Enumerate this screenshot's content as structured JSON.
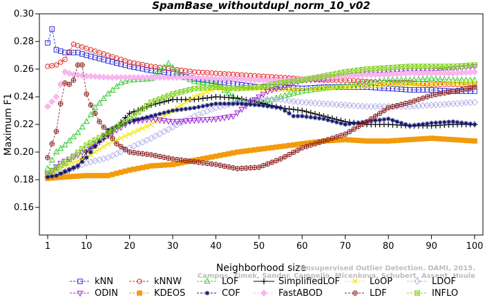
{
  "chart_data": {
    "type": "line",
    "title": "SpamBase_withoutdupl_norm_10_v02",
    "xlabel": "Neighborhood size",
    "ylabel": "Maximum F1",
    "xlim": [
      1,
      100
    ],
    "ylim": [
      0.14,
      0.3
    ],
    "xticks": [
      1,
      10,
      20,
      30,
      40,
      50,
      60,
      70,
      80,
      90,
      100
    ],
    "yticks": [
      0.16,
      0.18,
      0.2,
      0.22,
      0.24,
      0.26,
      0.28,
      0.3
    ],
    "ytick_labels": [
      "0.16",
      "0.18",
      "0.20",
      "0.22",
      "0.24",
      "0.26",
      "0.28",
      "0.30"
    ],
    "grid": false,
    "legend_position": "bottom",
    "watermark": [
      "Unsupervised Outlier Detection. DAMI, 2015.",
      "Campos, Zimek, Sander, Campello, Micenkova, Schubert, Assent, Houle"
    ],
    "series": [
      {
        "name": "kNN",
        "color": "#2b2bd6",
        "marker": "square",
        "dashed": true,
        "points": [
          [
            1,
            0.279
          ],
          [
            2,
            0.289
          ],
          [
            3,
            0.274
          ],
          [
            5,
            0.272
          ],
          [
            8,
            0.272
          ],
          [
            10,
            0.27
          ],
          [
            15,
            0.266
          ],
          [
            20,
            0.262
          ],
          [
            25,
            0.259
          ],
          [
            30,
            0.257
          ],
          [
            35,
            0.253
          ],
          [
            40,
            0.251
          ],
          [
            45,
            0.249
          ],
          [
            50,
            0.247
          ],
          [
            55,
            0.247
          ],
          [
            60,
            0.246
          ],
          [
            65,
            0.247
          ],
          [
            70,
            0.247
          ],
          [
            75,
            0.247
          ],
          [
            80,
            0.246
          ],
          [
            85,
            0.245
          ],
          [
            90,
            0.245
          ],
          [
            95,
            0.244
          ],
          [
            100,
            0.244
          ]
        ]
      },
      {
        "name": "kNNW",
        "color": "#e0231f",
        "marker": "circle",
        "dashed": true,
        "points": [
          [
            1,
            0.262
          ],
          [
            3,
            0.263
          ],
          [
            5,
            0.267
          ],
          [
            7,
            0.278
          ],
          [
            10,
            0.275
          ],
          [
            15,
            0.27
          ],
          [
            20,
            0.265
          ],
          [
            25,
            0.262
          ],
          [
            30,
            0.26
          ],
          [
            35,
            0.258
          ],
          [
            40,
            0.257
          ],
          [
            45,
            0.256
          ],
          [
            50,
            0.255
          ],
          [
            55,
            0.254
          ],
          [
            60,
            0.253
          ],
          [
            65,
            0.252
          ],
          [
            70,
            0.252
          ],
          [
            75,
            0.251
          ],
          [
            80,
            0.25
          ],
          [
            85,
            0.25
          ],
          [
            90,
            0.249
          ],
          [
            95,
            0.249
          ],
          [
            100,
            0.249
          ]
        ]
      },
      {
        "name": "LOF",
        "color": "#2ecc2e",
        "marker": "triangle",
        "dashed": true,
        "points": [
          [
            1,
            0.188
          ],
          [
            3,
            0.2
          ],
          [
            5,
            0.205
          ],
          [
            8,
            0.214
          ],
          [
            10,
            0.222
          ],
          [
            12,
            0.232
          ],
          [
            15,
            0.242
          ],
          [
            18,
            0.25
          ],
          [
            20,
            0.252
          ],
          [
            25,
            0.253
          ],
          [
            29,
            0.264
          ],
          [
            32,
            0.255
          ],
          [
            35,
            0.251
          ],
          [
            40,
            0.249
          ],
          [
            45,
            0.238
          ],
          [
            50,
            0.235
          ],
          [
            55,
            0.24
          ],
          [
            60,
            0.244
          ],
          [
            65,
            0.246
          ],
          [
            70,
            0.248
          ],
          [
            75,
            0.25
          ],
          [
            80,
            0.252
          ],
          [
            85,
            0.252
          ],
          [
            90,
            0.253
          ],
          [
            95,
            0.252
          ],
          [
            100,
            0.252
          ]
        ]
      },
      {
        "name": "SimplifiedLOF",
        "color": "#000000",
        "marker": "plus",
        "dashed": false,
        "points": [
          [
            1,
            0.182
          ],
          [
            3,
            0.182
          ],
          [
            5,
            0.185
          ],
          [
            8,
            0.19
          ],
          [
            10,
            0.2
          ],
          [
            15,
            0.212
          ],
          [
            20,
            0.228
          ],
          [
            25,
            0.234
          ],
          [
            30,
            0.238
          ],
          [
            35,
            0.238
          ],
          [
            40,
            0.24
          ],
          [
            45,
            0.239
          ],
          [
            50,
            0.236
          ],
          [
            55,
            0.232
          ],
          [
            60,
            0.23
          ],
          [
            65,
            0.226
          ],
          [
            70,
            0.222
          ],
          [
            75,
            0.22
          ],
          [
            80,
            0.22
          ],
          [
            85,
            0.219
          ],
          [
            90,
            0.219
          ],
          [
            95,
            0.22
          ],
          [
            100,
            0.22
          ]
        ]
      },
      {
        "name": "LoOP",
        "color": "#f2e500",
        "marker": "x",
        "dashed": true,
        "points": [
          [
            1,
            0.182
          ],
          [
            5,
            0.19
          ],
          [
            10,
            0.196
          ],
          [
            15,
            0.206
          ],
          [
            20,
            0.213
          ],
          [
            25,
            0.22
          ],
          [
            30,
            0.23
          ],
          [
            35,
            0.24
          ],
          [
            40,
            0.246
          ],
          [
            45,
            0.246
          ],
          [
            50,
            0.246
          ],
          [
            55,
            0.245
          ],
          [
            60,
            0.245
          ],
          [
            65,
            0.246
          ],
          [
            70,
            0.247
          ],
          [
            75,
            0.248
          ],
          [
            80,
            0.249
          ],
          [
            85,
            0.249
          ],
          [
            90,
            0.249
          ],
          [
            95,
            0.25
          ],
          [
            100,
            0.25
          ]
        ]
      },
      {
        "name": "LDOF",
        "color": "#b5b0e8",
        "marker": "diamond",
        "dashed": true,
        "points": [
          [
            1,
            0.184
          ],
          [
            5,
            0.186
          ],
          [
            10,
            0.192
          ],
          [
            15,
            0.196
          ],
          [
            20,
            0.203
          ],
          [
            25,
            0.21
          ],
          [
            30,
            0.218
          ],
          [
            35,
            0.226
          ],
          [
            40,
            0.232
          ],
          [
            45,
            0.236
          ],
          [
            50,
            0.238
          ],
          [
            55,
            0.238
          ],
          [
            60,
            0.236
          ],
          [
            65,
            0.235
          ],
          [
            70,
            0.234
          ],
          [
            75,
            0.233
          ],
          [
            80,
            0.233
          ],
          [
            85,
            0.233
          ],
          [
            90,
            0.234
          ],
          [
            95,
            0.235
          ],
          [
            100,
            0.236
          ]
        ]
      },
      {
        "name": "ODIN",
        "color": "#9b1fd1",
        "marker": "invtriangle",
        "dashed": true,
        "points": [
          [
            1,
            0.184
          ],
          [
            4,
            0.192
          ],
          [
            8,
            0.198
          ],
          [
            12,
            0.206
          ],
          [
            15,
            0.212
          ],
          [
            20,
            0.222
          ],
          [
            25,
            0.224
          ],
          [
            30,
            0.222
          ],
          [
            35,
            0.223
          ],
          [
            40,
            0.224
          ],
          [
            44,
            0.226
          ],
          [
            48,
            0.236
          ],
          [
            52,
            0.244
          ],
          [
            56,
            0.248
          ],
          [
            60,
            0.252
          ],
          [
            65,
            0.253
          ],
          [
            70,
            0.255
          ],
          [
            75,
            0.257
          ],
          [
            80,
            0.258
          ],
          [
            85,
            0.259
          ],
          [
            90,
            0.259
          ],
          [
            95,
            0.26
          ],
          [
            100,
            0.262
          ]
        ]
      },
      {
        "name": "KDEOS",
        "color": "#f29b0c",
        "marker": "square-filled",
        "dashed": true,
        "points": [
          [
            1,
            0.181
          ],
          [
            5,
            0.182
          ],
          [
            10,
            0.183
          ],
          [
            15,
            0.183
          ],
          [
            20,
            0.187
          ],
          [
            25,
            0.19
          ],
          [
            30,
            0.191
          ],
          [
            35,
            0.194
          ],
          [
            40,
            0.197
          ],
          [
            45,
            0.2
          ],
          [
            50,
            0.202
          ],
          [
            55,
            0.204
          ],
          [
            60,
            0.206
          ],
          [
            65,
            0.208
          ],
          [
            70,
            0.209
          ],
          [
            75,
            0.208
          ],
          [
            80,
            0.208
          ],
          [
            85,
            0.209
          ],
          [
            90,
            0.21
          ],
          [
            95,
            0.209
          ],
          [
            100,
            0.208
          ]
        ]
      },
      {
        "name": "COF",
        "color": "#12146e",
        "marker": "asterisk",
        "dashed": true,
        "points": [
          [
            1,
            0.182
          ],
          [
            3,
            0.183
          ],
          [
            5,
            0.186
          ],
          [
            8,
            0.19
          ],
          [
            10,
            0.196
          ],
          [
            15,
            0.216
          ],
          [
            20,
            0.222
          ],
          [
            25,
            0.226
          ],
          [
            30,
            0.23
          ],
          [
            35,
            0.232
          ],
          [
            40,
            0.235
          ],
          [
            45,
            0.235
          ],
          [
            50,
            0.234
          ],
          [
            55,
            0.232
          ],
          [
            58,
            0.226
          ],
          [
            60,
            0.226
          ],
          [
            65,
            0.224
          ],
          [
            70,
            0.22
          ],
          [
            75,
            0.222
          ],
          [
            80,
            0.224
          ],
          [
            85,
            0.219
          ],
          [
            90,
            0.221
          ],
          [
            95,
            0.222
          ],
          [
            100,
            0.22
          ]
        ]
      },
      {
        "name": "FastABOD",
        "color": "#f7b6ee",
        "marker": "diamond-filled",
        "dashed": true,
        "points": [
          [
            1,
            0.233
          ],
          [
            3,
            0.24
          ],
          [
            5,
            0.258
          ],
          [
            7,
            0.256
          ],
          [
            10,
            0.255
          ],
          [
            15,
            0.254
          ],
          [
            20,
            0.254
          ],
          [
            25,
            0.254
          ],
          [
            30,
            0.254
          ],
          [
            35,
            0.254
          ],
          [
            40,
            0.253
          ],
          [
            45,
            0.253
          ],
          [
            50,
            0.252
          ],
          [
            55,
            0.252
          ],
          [
            60,
            0.253
          ],
          [
            65,
            0.254
          ],
          [
            70,
            0.255
          ],
          [
            75,
            0.256
          ],
          [
            80,
            0.256
          ],
          [
            85,
            0.257
          ],
          [
            90,
            0.257
          ],
          [
            95,
            0.257
          ],
          [
            100,
            0.258
          ]
        ]
      },
      {
        "name": "LDF",
        "color": "#8c1f1f",
        "marker": "circle-plus",
        "dashed": true,
        "points": [
          [
            1,
            0.196
          ],
          [
            2,
            0.206
          ],
          [
            3,
            0.215
          ],
          [
            4,
            0.235
          ],
          [
            5,
            0.25
          ],
          [
            6,
            0.249
          ],
          [
            7,
            0.252
          ],
          [
            8,
            0.263
          ],
          [
            9,
            0.263
          ],
          [
            10,
            0.242
          ],
          [
            11,
            0.234
          ],
          [
            13,
            0.222
          ],
          [
            15,
            0.214
          ],
          [
            17,
            0.206
          ],
          [
            20,
            0.2
          ],
          [
            25,
            0.198
          ],
          [
            30,
            0.195
          ],
          [
            35,
            0.193
          ],
          [
            40,
            0.191
          ],
          [
            45,
            0.188
          ],
          [
            50,
            0.189
          ],
          [
            55,
            0.195
          ],
          [
            60,
            0.203
          ],
          [
            65,
            0.208
          ],
          [
            70,
            0.213
          ],
          [
            75,
            0.222
          ],
          [
            80,
            0.232
          ],
          [
            85,
            0.236
          ],
          [
            90,
            0.241
          ],
          [
            95,
            0.244
          ],
          [
            100,
            0.247
          ]
        ]
      },
      {
        "name": "INFLO",
        "color": "#7fd11a",
        "marker": "star",
        "dashed": true,
        "points": [
          [
            1,
            0.185
          ],
          [
            5,
            0.192
          ],
          [
            10,
            0.205
          ],
          [
            15,
            0.214
          ],
          [
            20,
            0.224
          ],
          [
            25,
            0.236
          ],
          [
            30,
            0.242
          ],
          [
            35,
            0.246
          ],
          [
            40,
            0.247
          ],
          [
            45,
            0.246
          ],
          [
            50,
            0.247
          ],
          [
            55,
            0.25
          ],
          [
            60,
            0.252
          ],
          [
            65,
            0.255
          ],
          [
            70,
            0.258
          ],
          [
            75,
            0.26
          ],
          [
            80,
            0.261
          ],
          [
            85,
            0.262
          ],
          [
            90,
            0.262
          ],
          [
            95,
            0.262
          ],
          [
            100,
            0.263
          ]
        ]
      }
    ]
  }
}
